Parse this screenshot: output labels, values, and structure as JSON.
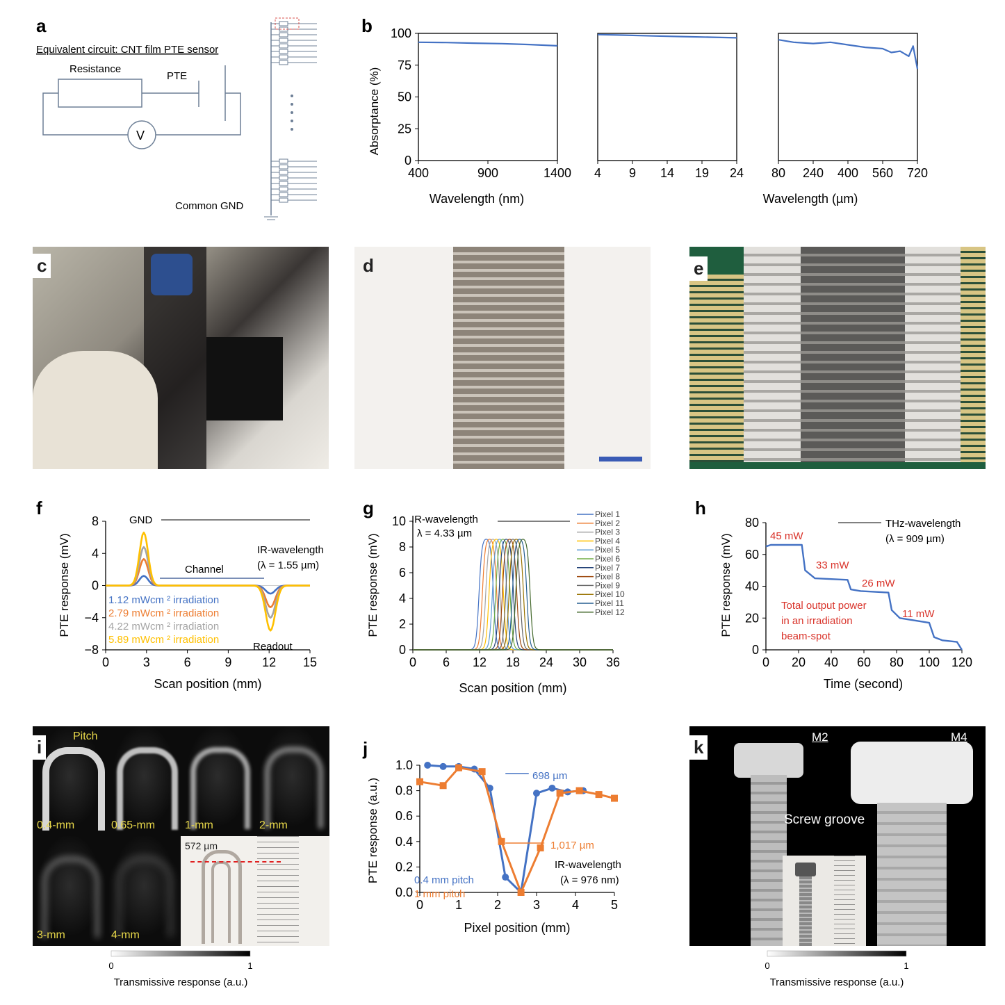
{
  "panels": {
    "a": "a",
    "b": "b",
    "c": "c",
    "d": "d",
    "e": "e",
    "f": "f",
    "g": "g",
    "h": "h",
    "i": "i",
    "j": "j",
    "k": "k"
  },
  "circuit": {
    "title": "Equivalent circuit: CNT film PTE sensor",
    "resistance": "Resistance",
    "pte": "PTE",
    "voltmeter": "V",
    "ground": "Common GND"
  },
  "chart_data": [
    {
      "id": "b1",
      "type": "line",
      "ylabel": "Absorptance (%)",
      "xlabel": "Wavelength (nm)",
      "xlim": [
        400,
        1400
      ],
      "ylim": [
        0,
        100
      ],
      "xticks": [
        "400",
        "900",
        "1400"
      ],
      "yticks": [
        "0",
        "25",
        "50",
        "75",
        "100"
      ],
      "series": [
        {
          "x": [
            400,
            600,
            800,
            1000,
            1200,
            1400
          ],
          "y": [
            93,
            92.8,
            92.3,
            91.9,
            91.2,
            90.2
          ]
        }
      ],
      "color": "#4472c4"
    },
    {
      "id": "b2",
      "type": "line",
      "xlabel": "",
      "xlim": [
        4,
        24
      ],
      "ylim": [
        0,
        100
      ],
      "xticks": [
        "4",
        "9",
        "14",
        "19",
        "24"
      ],
      "series": [
        {
          "x": [
            4,
            8,
            12,
            16,
            20,
            24
          ],
          "y": [
            99,
            98.6,
            98,
            97.5,
            97,
            96.5
          ]
        }
      ],
      "color": "#4472c4"
    },
    {
      "id": "b3",
      "type": "line",
      "xlabel": "Wavelength (µm)",
      "xlim": [
        80,
        720
      ],
      "ylim": [
        0,
        100
      ],
      "xticks": [
        "80",
        "240",
        "400",
        "560",
        "720"
      ],
      "series": [
        {
          "x": [
            80,
            150,
            240,
            320,
            400,
            480,
            560,
            600,
            640,
            680,
            700,
            720
          ],
          "y": [
            95,
            93,
            92,
            93,
            91,
            89,
            88,
            85,
            86,
            82,
            90,
            72
          ]
        }
      ],
      "color": "#4472c4"
    },
    {
      "id": "f",
      "type": "line",
      "ylabel": "PTE response (mV)",
      "xlabel": "Scan position (mm)",
      "xlim": [
        0,
        15
      ],
      "ylim": [
        -8,
        8
      ],
      "xticks": [
        "0",
        "3",
        "6",
        "9",
        "12",
        "15"
      ],
      "yticks": [
        "−8",
        "−4",
        "0",
        "4",
        "8"
      ],
      "annotations": {
        "gnd": "GND",
        "channel": "Channel",
        "readout": "Readout",
        "ir": "IR-wavelength",
        "lambda": "(λ = 1.55 µm)"
      },
      "series": [
        {
          "name": "1.12 mWcm ² irradiation",
          "peak": 1.2,
          "dip": -1.0,
          "color": "#4472c4"
        },
        {
          "name": "2.79 mWcm ² irradiation",
          "peak": 3.3,
          "dip": -2.7,
          "color": "#ed7d31"
        },
        {
          "name": "4.22 mWcm ² irradiation",
          "peak": 4.8,
          "dip": -4.0,
          "color": "#a5a5a5"
        },
        {
          "name": "5.89 mWcm ² irradiation",
          "peak": 6.6,
          "dip": -5.6,
          "color": "#ffc000"
        }
      ]
    },
    {
      "id": "g",
      "type": "line",
      "ylabel": "PTE response (mV)",
      "xlabel": "Scan position (mm)",
      "xlim": [
        0,
        36
      ],
      "ylim": [
        0,
        10
      ],
      "xticks": [
        "0",
        "6",
        "12",
        "18",
        "24",
        "30",
        "36"
      ],
      "yticks": [
        "0",
        "2",
        "4",
        "6",
        "8",
        "10"
      ],
      "annotations": {
        "ir": "IR-wavelength",
        "lambda": "λ = 4.33 µm"
      },
      "series": [
        {
          "name": "Pixel 1",
          "center": 13.2,
          "color": "#4472c4"
        },
        {
          "name": "Pixel 2",
          "center": 13.8,
          "color": "#ed7d31"
        },
        {
          "name": "Pixel 3",
          "center": 14.4,
          "color": "#a5a5a5"
        },
        {
          "name": "Pixel 4",
          "center": 15.0,
          "color": "#ffc000"
        },
        {
          "name": "Pixel 5",
          "center": 15.6,
          "color": "#5b9bd5"
        },
        {
          "name": "Pixel 6",
          "center": 16.2,
          "color": "#70ad47"
        },
        {
          "name": "Pixel 7",
          "center": 16.8,
          "color": "#264478"
        },
        {
          "name": "Pixel 8",
          "center": 17.4,
          "color": "#9e480e"
        },
        {
          "name": "Pixel 9",
          "center": 18.0,
          "color": "#636363"
        },
        {
          "name": "Pixel 10",
          "center": 18.6,
          "color": "#997300"
        },
        {
          "name": "Pixel 11",
          "center": 19.2,
          "color": "#255e91"
        },
        {
          "name": "Pixel 12",
          "center": 19.8,
          "color": "#43682b"
        }
      ]
    },
    {
      "id": "h",
      "type": "line",
      "ylabel": "PTE response (mV)",
      "xlabel": "Time (second)",
      "xlim": [
        0,
        120
      ],
      "ylim": [
        0,
        80
      ],
      "xticks": [
        "0",
        "20",
        "40",
        "60",
        "80",
        "100",
        "120"
      ],
      "yticks": [
        "0",
        "20",
        "40",
        "60",
        "80"
      ],
      "annotations": {
        "thz": "THz-wavelength",
        "lambda": "(λ = 909 µm)",
        "p1": "45 mW",
        "p2": "33 mW",
        "p3": "26 mW",
        "p4": "11 mW",
        "note1": "Total output power",
        "note2": "in an irradiation",
        "note3": "beam-spot"
      },
      "series": [
        {
          "x": [
            0,
            3,
            22,
            24,
            30,
            50,
            52,
            58,
            75,
            77,
            82,
            100,
            103,
            108,
            117,
            120
          ],
          "y": [
            65,
            66,
            66,
            50,
            45,
            44,
            38,
            37,
            36,
            25,
            20,
            17,
            8,
            6,
            5,
            0
          ],
          "color": "#4472c4"
        }
      ]
    },
    {
      "id": "j",
      "type": "line",
      "ylabel": "PTE response (a.u.)",
      "xlabel": "Pixel position (mm)",
      "xlim": [
        0,
        5
      ],
      "ylim": [
        0,
        1
      ],
      "xticks": [
        "0",
        "1",
        "2",
        "3",
        "4",
        "5"
      ],
      "yticks": [
        "0.0",
        "0.2",
        "0.4",
        "0.6",
        "0.8",
        "1.0"
      ],
      "annotations": {
        "d1": "698 µm",
        "d2": "1,017 µm",
        "ir": "IR-wavelength",
        "lambda": "(λ = 976 nm)"
      },
      "series": [
        {
          "name": "0.4 mm pitch",
          "x": [
            0.2,
            0.6,
            1.0,
            1.4,
            1.8,
            2.2,
            2.6,
            3.0,
            3.4,
            3.8,
            4.2
          ],
          "y": [
            1.0,
            0.99,
            0.99,
            0.97,
            0.82,
            0.12,
            0.0,
            0.78,
            0.82,
            0.79,
            0.8
          ],
          "color": "#4472c4"
        },
        {
          "name": "1 mm pitch",
          "x": [
            0.0,
            0.6,
            1.0,
            1.6,
            2.1,
            2.6,
            3.1,
            3.6,
            4.1,
            4.6,
            5.0
          ],
          "y": [
            0.87,
            0.84,
            0.98,
            0.95,
            0.4,
            0.0,
            0.35,
            0.78,
            0.8,
            0.77,
            0.74
          ],
          "color": "#ed7d31"
        }
      ]
    }
  ],
  "panel_i": {
    "pitch": "Pitch",
    "tiles": [
      "0.4-mm",
      "0.65-mm",
      "1-mm",
      "2-mm",
      "3-mm",
      "4-mm"
    ],
    "scale_label": "572 µm",
    "cbar_min": "0",
    "cbar_max": "1",
    "cbar_label": "Transmissive response (a.u.)"
  },
  "panel_k": {
    "m2": "M2",
    "m4": "M4",
    "groove": "Screw groove",
    "cbar_min": "0",
    "cbar_max": "1",
    "cbar_label": "Transmissive response (a.u.)"
  }
}
